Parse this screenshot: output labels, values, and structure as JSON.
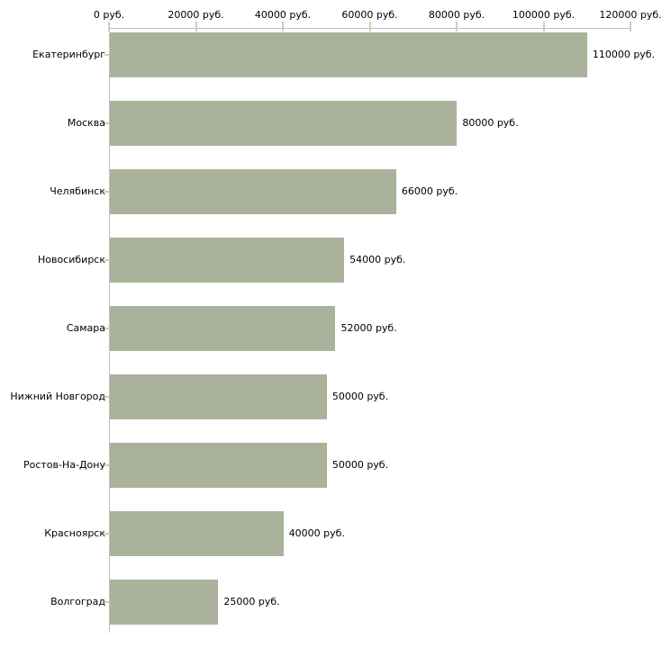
{
  "chart_data": {
    "type": "bar",
    "orientation": "horizontal",
    "title": "",
    "xlabel": "",
    "ylabel": "",
    "categories": [
      "Екатеринбург",
      "Москва",
      "Челябинск",
      "Новосибирск",
      "Самара",
      "Нижний Новгород",
      "Ростов-На-Дону",
      "Красноярск",
      "Волгоград"
    ],
    "values": [
      110000,
      80000,
      66000,
      54000,
      52000,
      50000,
      50000,
      40000,
      25000
    ],
    "value_labels": [
      "110000 руб.",
      "80000 руб.",
      "66000 руб.",
      "54000 руб.",
      "52000 руб.",
      "50000 руб.",
      "50000 руб.",
      "40000 руб.",
      "25000 руб."
    ],
    "x_ticks": [
      0,
      20000,
      40000,
      60000,
      80000,
      100000,
      120000
    ],
    "x_tick_labels": [
      "0 руб.",
      "20000 руб.",
      "40000 руб.",
      "60000 руб.",
      "80000 руб.",
      "100000 руб.",
      "120000 руб."
    ],
    "xlim": [
      0,
      120000
    ],
    "grid": false,
    "legend": false,
    "colors": {
      "bar": "#abb29b",
      "axis_line": "#c0c0c0",
      "tick_mark": "#d0d0b0",
      "text": "#000000",
      "background": "#ffffff"
    }
  }
}
